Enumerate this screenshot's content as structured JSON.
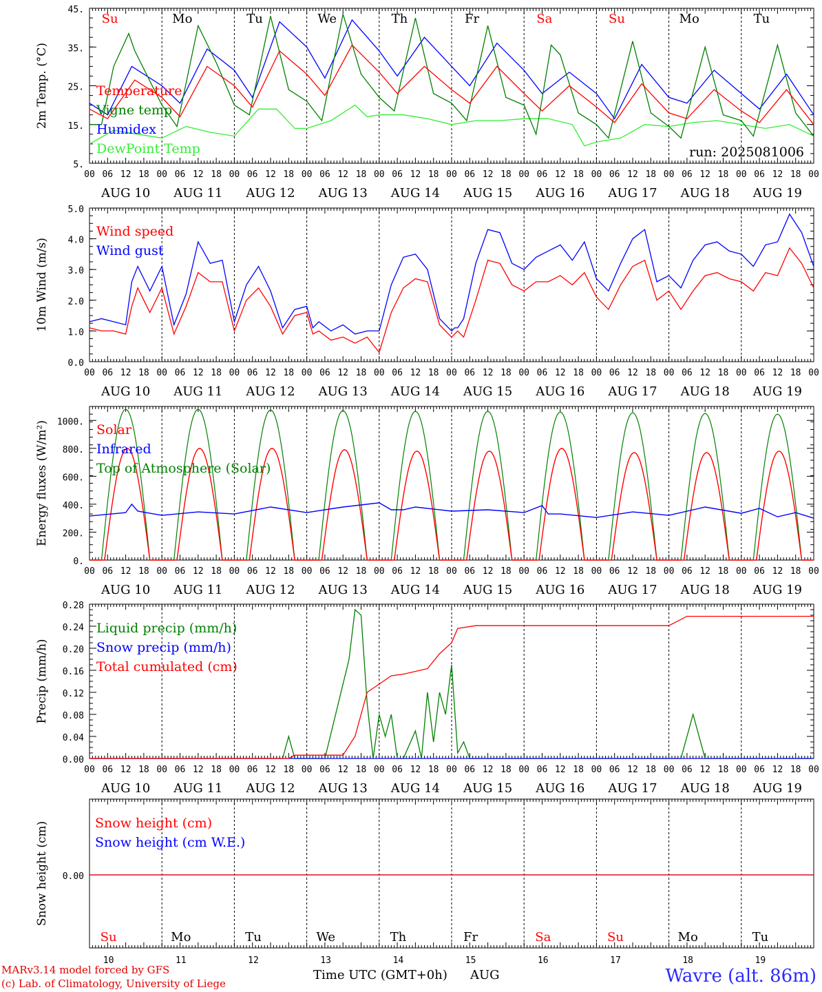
{
  "footer": {
    "model": "MARv3.14 model forced by GFS",
    "credit": "(c) Lab. of Climatology, University of Liege",
    "time_label": "Time UTC (GMT+0h)",
    "month": "AUG",
    "station": "Wavre (alt. 86m)"
  },
  "colors": {
    "red": "#ff0000",
    "green": "#008000",
    "blue": "#0000ff",
    "light_green": "#33ee33"
  },
  "days": [
    "10",
    "11",
    "12",
    "13",
    "14",
    "15",
    "16",
    "17",
    "18",
    "19"
  ],
  "weekdays": [
    {
      "label": "Su",
      "color": "#ff0000"
    },
    {
      "label": "Mo",
      "color": "#000000"
    },
    {
      "label": "Tu",
      "color": "#000000"
    },
    {
      "label": "We",
      "color": "#000000"
    },
    {
      "label": "Th",
      "color": "#000000"
    },
    {
      "label": "Fr",
      "color": "#000000"
    },
    {
      "label": "Sa",
      "color": "#ff0000"
    },
    {
      "label": "Su",
      "color": "#ff0000"
    },
    {
      "label": "Mo",
      "color": "#000000"
    },
    {
      "label": "Tu",
      "color": "#000000"
    }
  ],
  "hour_ticks": [
    "00",
    "06",
    "12",
    "18"
  ],
  "chart_data": [
    {
      "type": "line",
      "ylabel": "2m Temp. (°C)",
      "ylim": [
        5,
        45
      ],
      "yticks": [
        "5.",
        "15.",
        "25.",
        "35.",
        "45."
      ],
      "annotation": "run: 2025081006",
      "x_unit": "hours since AUG 10 00 UTC",
      "series": [
        {
          "name": "Temperature",
          "color": "#ff0000",
          "x": [
            0,
            6,
            15,
            24,
            30,
            39,
            48,
            54,
            63,
            72,
            78,
            87,
            96,
            102,
            111,
            120,
            126,
            135,
            144,
            150,
            159,
            168,
            174,
            183,
            192,
            198,
            207,
            216,
            222,
            231,
            240
          ],
          "values": [
            19,
            16.5,
            26.5,
            22,
            17,
            30,
            25,
            19.5,
            34,
            28,
            22.5,
            35.5,
            28.5,
            23,
            30,
            24,
            20.5,
            30,
            23,
            18.5,
            25,
            19.5,
            15.5,
            25.5,
            18,
            16.5,
            24,
            18.5,
            15.5,
            24,
            15
          ]
        },
        {
          "name": "Vigne temp",
          "color": "#008000",
          "x": [
            0,
            4,
            8,
            13,
            15,
            24,
            29,
            36,
            42,
            48,
            53,
            60,
            66,
            72,
            77,
            84,
            90,
            96,
            101,
            108,
            114,
            120,
            125,
            132,
            138,
            144,
            148,
            153,
            156,
            162,
            168,
            172,
            180,
            186,
            192,
            196,
            204,
            210,
            216,
            220,
            228,
            234,
            240
          ],
          "values": [
            15,
            15,
            30,
            38.5,
            34,
            20,
            14.5,
            40.5,
            31,
            20,
            17.5,
            43,
            24,
            21,
            16,
            43.5,
            28,
            22,
            18.5,
            42.5,
            23,
            20.5,
            16,
            40.5,
            22,
            20,
            12.5,
            35.5,
            33,
            18,
            15,
            11.5,
            36.5,
            18,
            14.5,
            11.5,
            35,
            17.5,
            16,
            12,
            35.5,
            18,
            12
          ]
        },
        {
          "name": "Humidex",
          "color": "#0000ff",
          "x": [
            0,
            6,
            14,
            24,
            30,
            39,
            48,
            54,
            63,
            72,
            78,
            87,
            96,
            102,
            111,
            120,
            126,
            135,
            144,
            150,
            159,
            168,
            174,
            183,
            192,
            198,
            207,
            216,
            222,
            231,
            240
          ],
          "values": [
            20.5,
            17.5,
            30,
            25,
            20.5,
            34.5,
            29,
            22,
            41.5,
            35,
            27,
            42,
            34,
            27.5,
            37.5,
            30,
            25,
            36,
            29,
            23,
            28.5,
            23,
            16.5,
            30.5,
            22,
            20.5,
            29,
            23,
            19,
            28,
            17.5
          ]
        },
        {
          "name": "DewPoint Temp",
          "color": "#33ee33",
          "x": [
            0,
            8,
            16,
            24,
            32,
            40,
            48,
            56,
            62,
            68,
            72,
            80,
            88,
            92,
            96,
            104,
            112,
            120,
            128,
            136,
            144,
            152,
            160,
            164,
            168,
            176,
            184,
            192,
            200,
            208,
            216,
            224,
            232,
            240
          ],
          "values": [
            10,
            13.5,
            12.5,
            11.5,
            14.5,
            13,
            12,
            19,
            19,
            14,
            14,
            16,
            20,
            17,
            17.5,
            17.5,
            16.5,
            15,
            16,
            16,
            16.5,
            16.5,
            15,
            9.5,
            10.5,
            11.5,
            15,
            14.5,
            15.5,
            16,
            15,
            14,
            15,
            12
          ]
        }
      ]
    },
    {
      "type": "line",
      "ylabel": "10m Wind (m/s)",
      "ylim": [
        0,
        5
      ],
      "yticks": [
        "0.0",
        "1.0",
        "2.0",
        "3.0",
        "4.0",
        "5.0"
      ],
      "x_unit": "hours since AUG 10 00 UTC",
      "series": [
        {
          "name": "Wind speed",
          "color": "#ff0000",
          "x": [
            0,
            4,
            8,
            12,
            14,
            16,
            20,
            24,
            28,
            32,
            36,
            40,
            44,
            48,
            52,
            56,
            60,
            64,
            68,
            72,
            74,
            76,
            80,
            84,
            88,
            92,
            96,
            100,
            104,
            108,
            112,
            116,
            119,
            120,
            121,
            122,
            124,
            128,
            132,
            136,
            140,
            144,
            148,
            152,
            156,
            160,
            164,
            168,
            172,
            176,
            180,
            184,
            188,
            192,
            196,
            200,
            204,
            208,
            212,
            216,
            220,
            224,
            228,
            232,
            236,
            240
          ],
          "values": [
            1.1,
            1.0,
            1.0,
            0.9,
            1.8,
            2.4,
            1.6,
            2.4,
            0.9,
            1.8,
            2.9,
            2.6,
            2.6,
            1.0,
            2.0,
            2.4,
            1.8,
            0.9,
            1.5,
            1.6,
            0.9,
            1.0,
            0.7,
            0.8,
            0.6,
            0.8,
            0.3,
            1.6,
            2.4,
            2.7,
            2.6,
            1.2,
            0.9,
            0.8,
            0.9,
            1.0,
            0.8,
            2.0,
            3.3,
            3.2,
            2.5,
            2.3,
            2.6,
            2.6,
            2.8,
            2.5,
            2.9,
            2.1,
            1.7,
            2.5,
            3.1,
            3.3,
            2.0,
            2.3,
            1.7,
            2.3,
            2.8,
            2.9,
            2.7,
            2.6,
            2.3,
            2.9,
            2.8,
            3.7,
            3.2,
            2.4
          ]
        },
        {
          "name": "Wind gust",
          "color": "#0000ff",
          "x": [
            0,
            4,
            8,
            12,
            14,
            16,
            20,
            24,
            28,
            32,
            36,
            40,
            44,
            48,
            52,
            56,
            60,
            64,
            68,
            72,
            74,
            76,
            80,
            84,
            88,
            92,
            96,
            100,
            104,
            108,
            112,
            116,
            119,
            120,
            121,
            122,
            124,
            128,
            132,
            136,
            140,
            144,
            148,
            152,
            156,
            160,
            164,
            168,
            172,
            176,
            180,
            184,
            188,
            192,
            196,
            200,
            204,
            208,
            212,
            216,
            220,
            224,
            228,
            232,
            236,
            240
          ],
          "values": [
            1.3,
            1.4,
            1.3,
            1.2,
            2.6,
            3.1,
            2.3,
            3.1,
            1.2,
            2.2,
            3.9,
            3.2,
            3.3,
            1.3,
            2.5,
            3.1,
            2.3,
            1.1,
            1.7,
            1.8,
            1.1,
            1.3,
            1.0,
            1.2,
            0.9,
            1.0,
            1.0,
            2.5,
            3.4,
            3.5,
            3.0,
            1.4,
            1.1,
            1.0,
            1.1,
            1.1,
            1.4,
            3.2,
            4.3,
            4.2,
            3.2,
            3.0,
            3.4,
            3.6,
            3.8,
            3.3,
            3.9,
            2.7,
            2.3,
            3.2,
            4.0,
            4.3,
            2.6,
            2.8,
            2.4,
            3.3,
            3.8,
            3.9,
            3.6,
            3.5,
            3.1,
            3.8,
            3.9,
            4.8,
            4.2,
            3.1
          ]
        }
      ]
    },
    {
      "type": "line",
      "ylabel": "Energy fluxes (W/m²)",
      "ylim": [
        0,
        1100
      ],
      "yticks": [
        "0.",
        "200.",
        "400.",
        "600.",
        "800.",
        "1000."
      ],
      "x_unit": "hours since AUG 10 00 UTC",
      "series": [
        {
          "name": "Solar",
          "color": "#ff0000",
          "peak_values": [
            800,
            800,
            800,
            790,
            780,
            780,
            800,
            770,
            770,
            780
          ],
          "peak_hours": [
            13,
            12.5,
            12.5,
            12.5,
            12.5,
            12.5,
            12.5,
            12.5,
            12.5,
            12.5
          ]
        },
        {
          "name": "Infrared",
          "color": "#0000ff",
          "x": [
            0,
            12,
            14,
            16,
            24,
            36,
            48,
            60,
            72,
            84,
            96,
            100,
            104,
            108,
            120,
            132,
            144,
            150,
            152,
            156,
            168,
            180,
            192,
            204,
            216,
            222,
            228,
            234,
            240
          ],
          "values": [
            315,
            340,
            400,
            350,
            320,
            345,
            330,
            380,
            340,
            380,
            410,
            360,
            360,
            380,
            350,
            360,
            340,
            390,
            330,
            330,
            305,
            345,
            320,
            380,
            335,
            370,
            310,
            340,
            300
          ]
        },
        {
          "name": "Top of Atmosphere (Solar)",
          "color": "#008000",
          "peak_values": [
            1080,
            1080,
            1075,
            1070,
            1065,
            1065,
            1060,
            1055,
            1050,
            1045
          ],
          "peak_hours": [
            12,
            12,
            12,
            12,
            12,
            12,
            12,
            12,
            12,
            12
          ]
        }
      ]
    },
    {
      "type": "line",
      "ylabel": "Precip (mm/h)",
      "ylim": [
        0,
        0.28
      ],
      "yticks": [
        "0.00",
        "0.04",
        "0.08",
        "0.12",
        "0.16",
        "0.20",
        "0.24",
        "0.28"
      ],
      "x_unit": "hours since AUG 10 00 UTC",
      "series": [
        {
          "name": "Liquid precip (mm/h)",
          "color": "#008000",
          "x": [
            0,
            64,
            66,
            68,
            78,
            86,
            88,
            90,
            92,
            94,
            96,
            98,
            100,
            102,
            104,
            108,
            110,
            112,
            114,
            116,
            118,
            120,
            122,
            124,
            126,
            128,
            196,
            200,
            204,
            240
          ],
          "values": [
            0,
            0,
            0.04,
            0,
            0,
            0.18,
            0.27,
            0.26,
            0.1,
            0,
            0.08,
            0.04,
            0.08,
            0.0,
            0,
            0.05,
            0,
            0.12,
            0.03,
            0.12,
            0.08,
            0.17,
            0.01,
            0.03,
            0,
            0,
            0,
            0.08,
            0,
            0
          ]
        },
        {
          "name": "Snow precip (mm/h)",
          "color": "#0000ff",
          "x": [
            0,
            240
          ],
          "values": [
            0,
            0
          ]
        },
        {
          "name": "Total cumulated (cm)",
          "color": "#ff0000",
          "x": [
            0,
            66,
            68,
            84,
            88,
            92,
            96,
            100,
            104,
            108,
            112,
            116,
            120,
            122,
            128,
            144,
            168,
            192,
            198,
            216,
            240
          ],
          "values": [
            0,
            0,
            0.006,
            0.006,
            0.04,
            0.12,
            0.135,
            0.15,
            0.153,
            0.158,
            0.163,
            0.19,
            0.21,
            0.236,
            0.241,
            0.241,
            0.241,
            0.241,
            0.258,
            0.258,
            0.258
          ]
        }
      ]
    },
    {
      "type": "line",
      "ylabel": "Snow height (cm)",
      "yticks": [
        "0.00"
      ],
      "x_unit": "hours since AUG 10 00 UTC",
      "series": [
        {
          "name": "Snow height (cm)",
          "color": "#ff0000",
          "x": [
            0,
            240
          ],
          "values": [
            0,
            0
          ]
        },
        {
          "name": "Snow height (cm W.E.)",
          "color": "#0000ff",
          "x": [
            0,
            240
          ],
          "values": [
            0,
            0
          ]
        }
      ]
    }
  ]
}
